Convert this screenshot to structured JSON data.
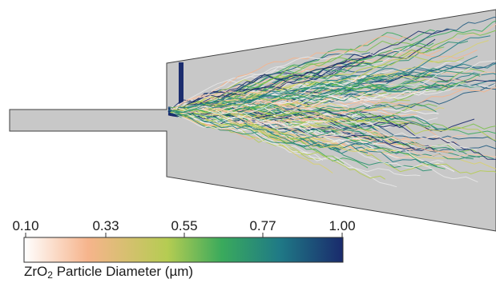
{
  "colorbar": {
    "ticks": [
      "0.10",
      "0.33",
      "0.55",
      "0.77",
      "1.00"
    ],
    "title_prefix": "ZrO",
    "title_subscript": "2",
    "title_suffix": " Particle Diameter (µm)",
    "stops": [
      "#ffffff",
      "#f6b48c",
      "#b5cc52",
      "#3aaa5c",
      "#1f7a86",
      "#1a2a6c"
    ]
  },
  "geometry_color": "#c8c8c8",
  "geometry_stroke": "#404040"
}
